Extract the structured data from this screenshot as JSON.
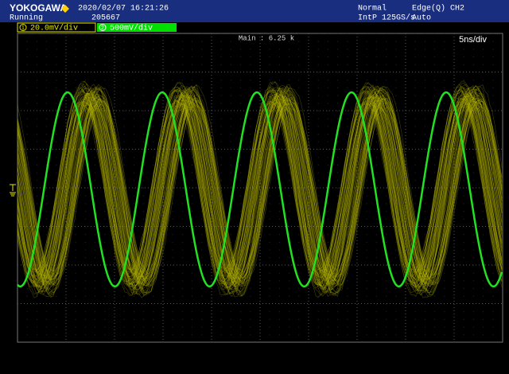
{
  "header": {
    "brand": "YOKOGAWA",
    "datetime": "2020/02/07 16:21:26",
    "status": "Running",
    "count": "205667",
    "mode": "Normal",
    "trigger": "Edge(Q) CH2",
    "sample_rate": "IntP 125GS/s",
    "trigger_mode": "Auto"
  },
  "channels": [
    {
      "number": "1",
      "scale": "20.0mV/div"
    },
    {
      "number": "2",
      "scale": "500mV/div"
    }
  ],
  "display": {
    "main": "Main : 6.25 k",
    "timebase": "5ns/div"
  }
}
